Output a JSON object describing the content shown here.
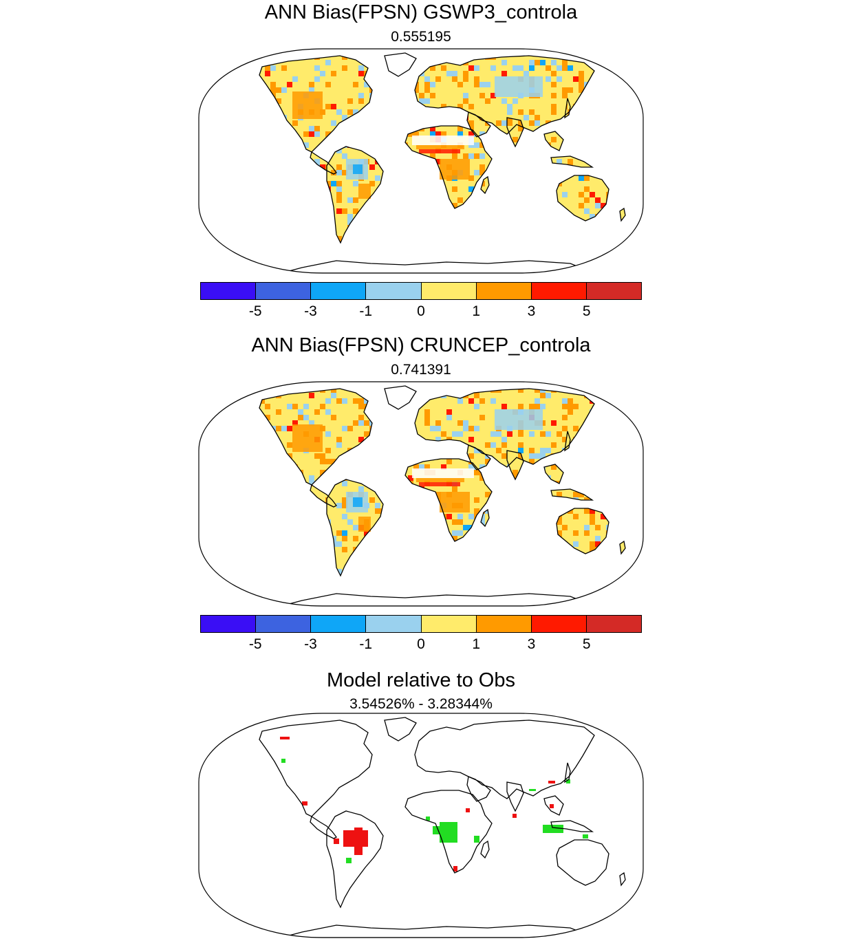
{
  "panels": [
    {
      "title": "ANN Bias(FPSN) GSWP3_controla",
      "value": "0.555195"
    },
    {
      "title": "ANN Bias(FPSN) CRUNCEP_controla",
      "value": "0.741391"
    },
    {
      "title": "Model relative to Obs",
      "value": "3.54526% - 3.28344%"
    }
  ],
  "colorbar": {
    "colors": [
      "#3a0ef5",
      "#3d63e0",
      "#0fa6f7",
      "#9ad1ee",
      "#ffeb6b",
      "#ff9a00",
      "#ff1a00",
      "#d42a26"
    ],
    "ticks": [
      "-5",
      "-3",
      "-1",
      "0",
      "1",
      "3",
      "5"
    ]
  },
  "relative_colors": {
    "better": "#22dd22",
    "worse": "#ee1111"
  }
}
